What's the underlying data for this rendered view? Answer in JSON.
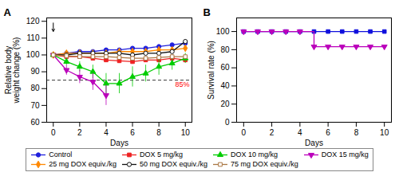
{
  "chart_data": [
    {
      "type": "line",
      "title": "A",
      "x": [
        0,
        1,
        2,
        3,
        4,
        5,
        6,
        7,
        8,
        9,
        10
      ],
      "series": [
        {
          "name": "Control",
          "color": "#2020DD",
          "marker": "circle",
          "values": [
            100,
            101,
            102,
            102,
            103,
            103,
            104,
            104,
            105,
            106,
            107
          ],
          "error": [
            0,
            0.8,
            0.8,
            0.8,
            0.8,
            0.8,
            0.8,
            0.8,
            0.8,
            0.8,
            0.8
          ]
        },
        {
          "name": "DOX 5 mg/kg",
          "color": "#EE2222",
          "marker": "square",
          "values": [
            100,
            99,
            99,
            98,
            97,
            96.5,
            96,
            97,
            97,
            98,
            97
          ],
          "error": [
            0,
            1,
            1.2,
            1.5,
            1.5,
            1.5,
            1.5,
            1.5,
            1.5,
            1.5,
            1.5
          ]
        },
        {
          "name": "DOX 10 mg/kg",
          "color": "#00CC00",
          "marker": "triangle-up",
          "values": [
            100,
            96,
            93,
            90,
            83,
            83,
            87,
            89,
            93,
            95,
            98
          ],
          "error": [
            0,
            2,
            3,
            4,
            6,
            6,
            6,
            5,
            5,
            4,
            3
          ]
        },
        {
          "name": "DOX 15 mg/kg",
          "color": "#BB00BB",
          "marker": "triangle-down",
          "values": [
            100,
            91,
            87,
            84,
            76,
            null,
            null,
            null,
            null,
            null,
            null
          ],
          "error": [
            0,
            3,
            4,
            5,
            6,
            null,
            null,
            null,
            null,
            null,
            null
          ]
        },
        {
          "name": "25 mg DOX equiv./kg",
          "color": "#FF8800",
          "marker": "diamond",
          "values": [
            100,
            101,
            101,
            101,
            101,
            102,
            102,
            102,
            103,
            103,
            104
          ],
          "error": [
            0,
            0.8,
            0.8,
            0.8,
            0.8,
            0.8,
            0.8,
            0.8,
            0.8,
            0.8,
            0.8
          ]
        },
        {
          "name": "50 mg DOX equiv./kg",
          "color": "#111111",
          "marker": "circle-open",
          "values": [
            100,
            100,
            101,
            101,
            101,
            101,
            100,
            101,
            101,
            102,
            108
          ],
          "error": [
            0,
            0.8,
            0.8,
            0.8,
            0.8,
            0.8,
            0.8,
            0.8,
            0.8,
            0.8,
            1.0
          ]
        },
        {
          "name": "75 mg DOX equiv./kg",
          "color": "#AA7744",
          "marker": "square-open",
          "values": [
            100,
            99.5,
            99,
            99,
            99,
            98.5,
            98,
            98,
            98.5,
            99,
            99
          ],
          "error": [
            0,
            0.8,
            0.8,
            0.8,
            0.8,
            0.8,
            0.8,
            0.8,
            0.8,
            0.8,
            0.8
          ]
        }
      ],
      "xlim": [
        -0.5,
        10.5
      ],
      "xticks": [
        0,
        2,
        4,
        6,
        8,
        10
      ],
      "ylim": [
        60,
        122
      ],
      "yticks": [
        60,
        70,
        80,
        90,
        100,
        110,
        120
      ],
      "xlabel": "Days",
      "ylabel": "Relative body\nweight change (%)",
      "hline": {
        "y": 85,
        "label": "85%",
        "label_color": "red",
        "line_style": "dashed"
      },
      "arrow": {
        "x": 0,
        "y_from": 119,
        "y_to": 114
      },
      "grid": false,
      "legend": "bottom"
    },
    {
      "type": "line",
      "title": "B",
      "x": [
        0,
        1,
        2,
        3,
        4,
        5,
        6,
        7,
        8,
        9,
        10
      ],
      "series": [
        {
          "color": "#1010DD",
          "marker": "square",
          "values": [
            100,
            100,
            100,
            100,
            100,
            100,
            100,
            100,
            100,
            100,
            100
          ]
        },
        {
          "color": "#BB00BB",
          "marker": "triangle-down",
          "line_style": "step",
          "values": [
            100,
            100,
            100,
            100,
            100,
            83.33,
            83.33,
            83.33,
            83.33,
            83.33,
            83.33
          ]
        }
      ],
      "xlim": [
        -0.5,
        10.5
      ],
      "xticks": [
        0,
        2,
        4,
        6,
        8,
        10
      ],
      "ylim": [
        0,
        115
      ],
      "yticks": [
        0,
        20,
        40,
        60,
        80,
        100
      ],
      "xlabel": "Days",
      "ylabel": "Survival rate (%)",
      "grid": false
    }
  ]
}
